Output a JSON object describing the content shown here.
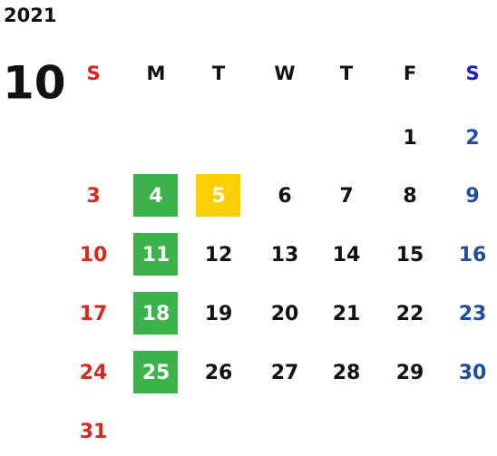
{
  "calendar": {
    "year": "2021",
    "month": "10",
    "weekdays": [
      "S",
      "M",
      "T",
      "W",
      "T",
      "F",
      "S"
    ],
    "weeks": [
      [
        null,
        null,
        null,
        null,
        null,
        1,
        2
      ],
      [
        3,
        4,
        5,
        6,
        7,
        8,
        9
      ],
      [
        10,
        11,
        12,
        13,
        14,
        15,
        16
      ],
      [
        17,
        18,
        19,
        20,
        21,
        22,
        23
      ],
      [
        24,
        25,
        26,
        27,
        28,
        29,
        30
      ],
      [
        31,
        null,
        null,
        null,
        null,
        null,
        null
      ]
    ],
    "highlights": [
      {
        "day": 4,
        "color": "#3bb34a"
      },
      {
        "day": 5,
        "color": "#fcd000"
      },
      {
        "day": 11,
        "color": "#3bb34a"
      },
      {
        "day": 18,
        "color": "#3bb34a"
      },
      {
        "day": 25,
        "color": "#3bb34a"
      }
    ],
    "header_colors": [
      "#e02020",
      "#111111",
      "#111111",
      "#111111",
      "#111111",
      "#111111",
      "#1a1adc"
    ],
    "day_colors": [
      "#d9281e",
      "#111111",
      "#111111",
      "#111111",
      "#111111",
      "#111111",
      "#1f4e9c"
    ]
  }
}
